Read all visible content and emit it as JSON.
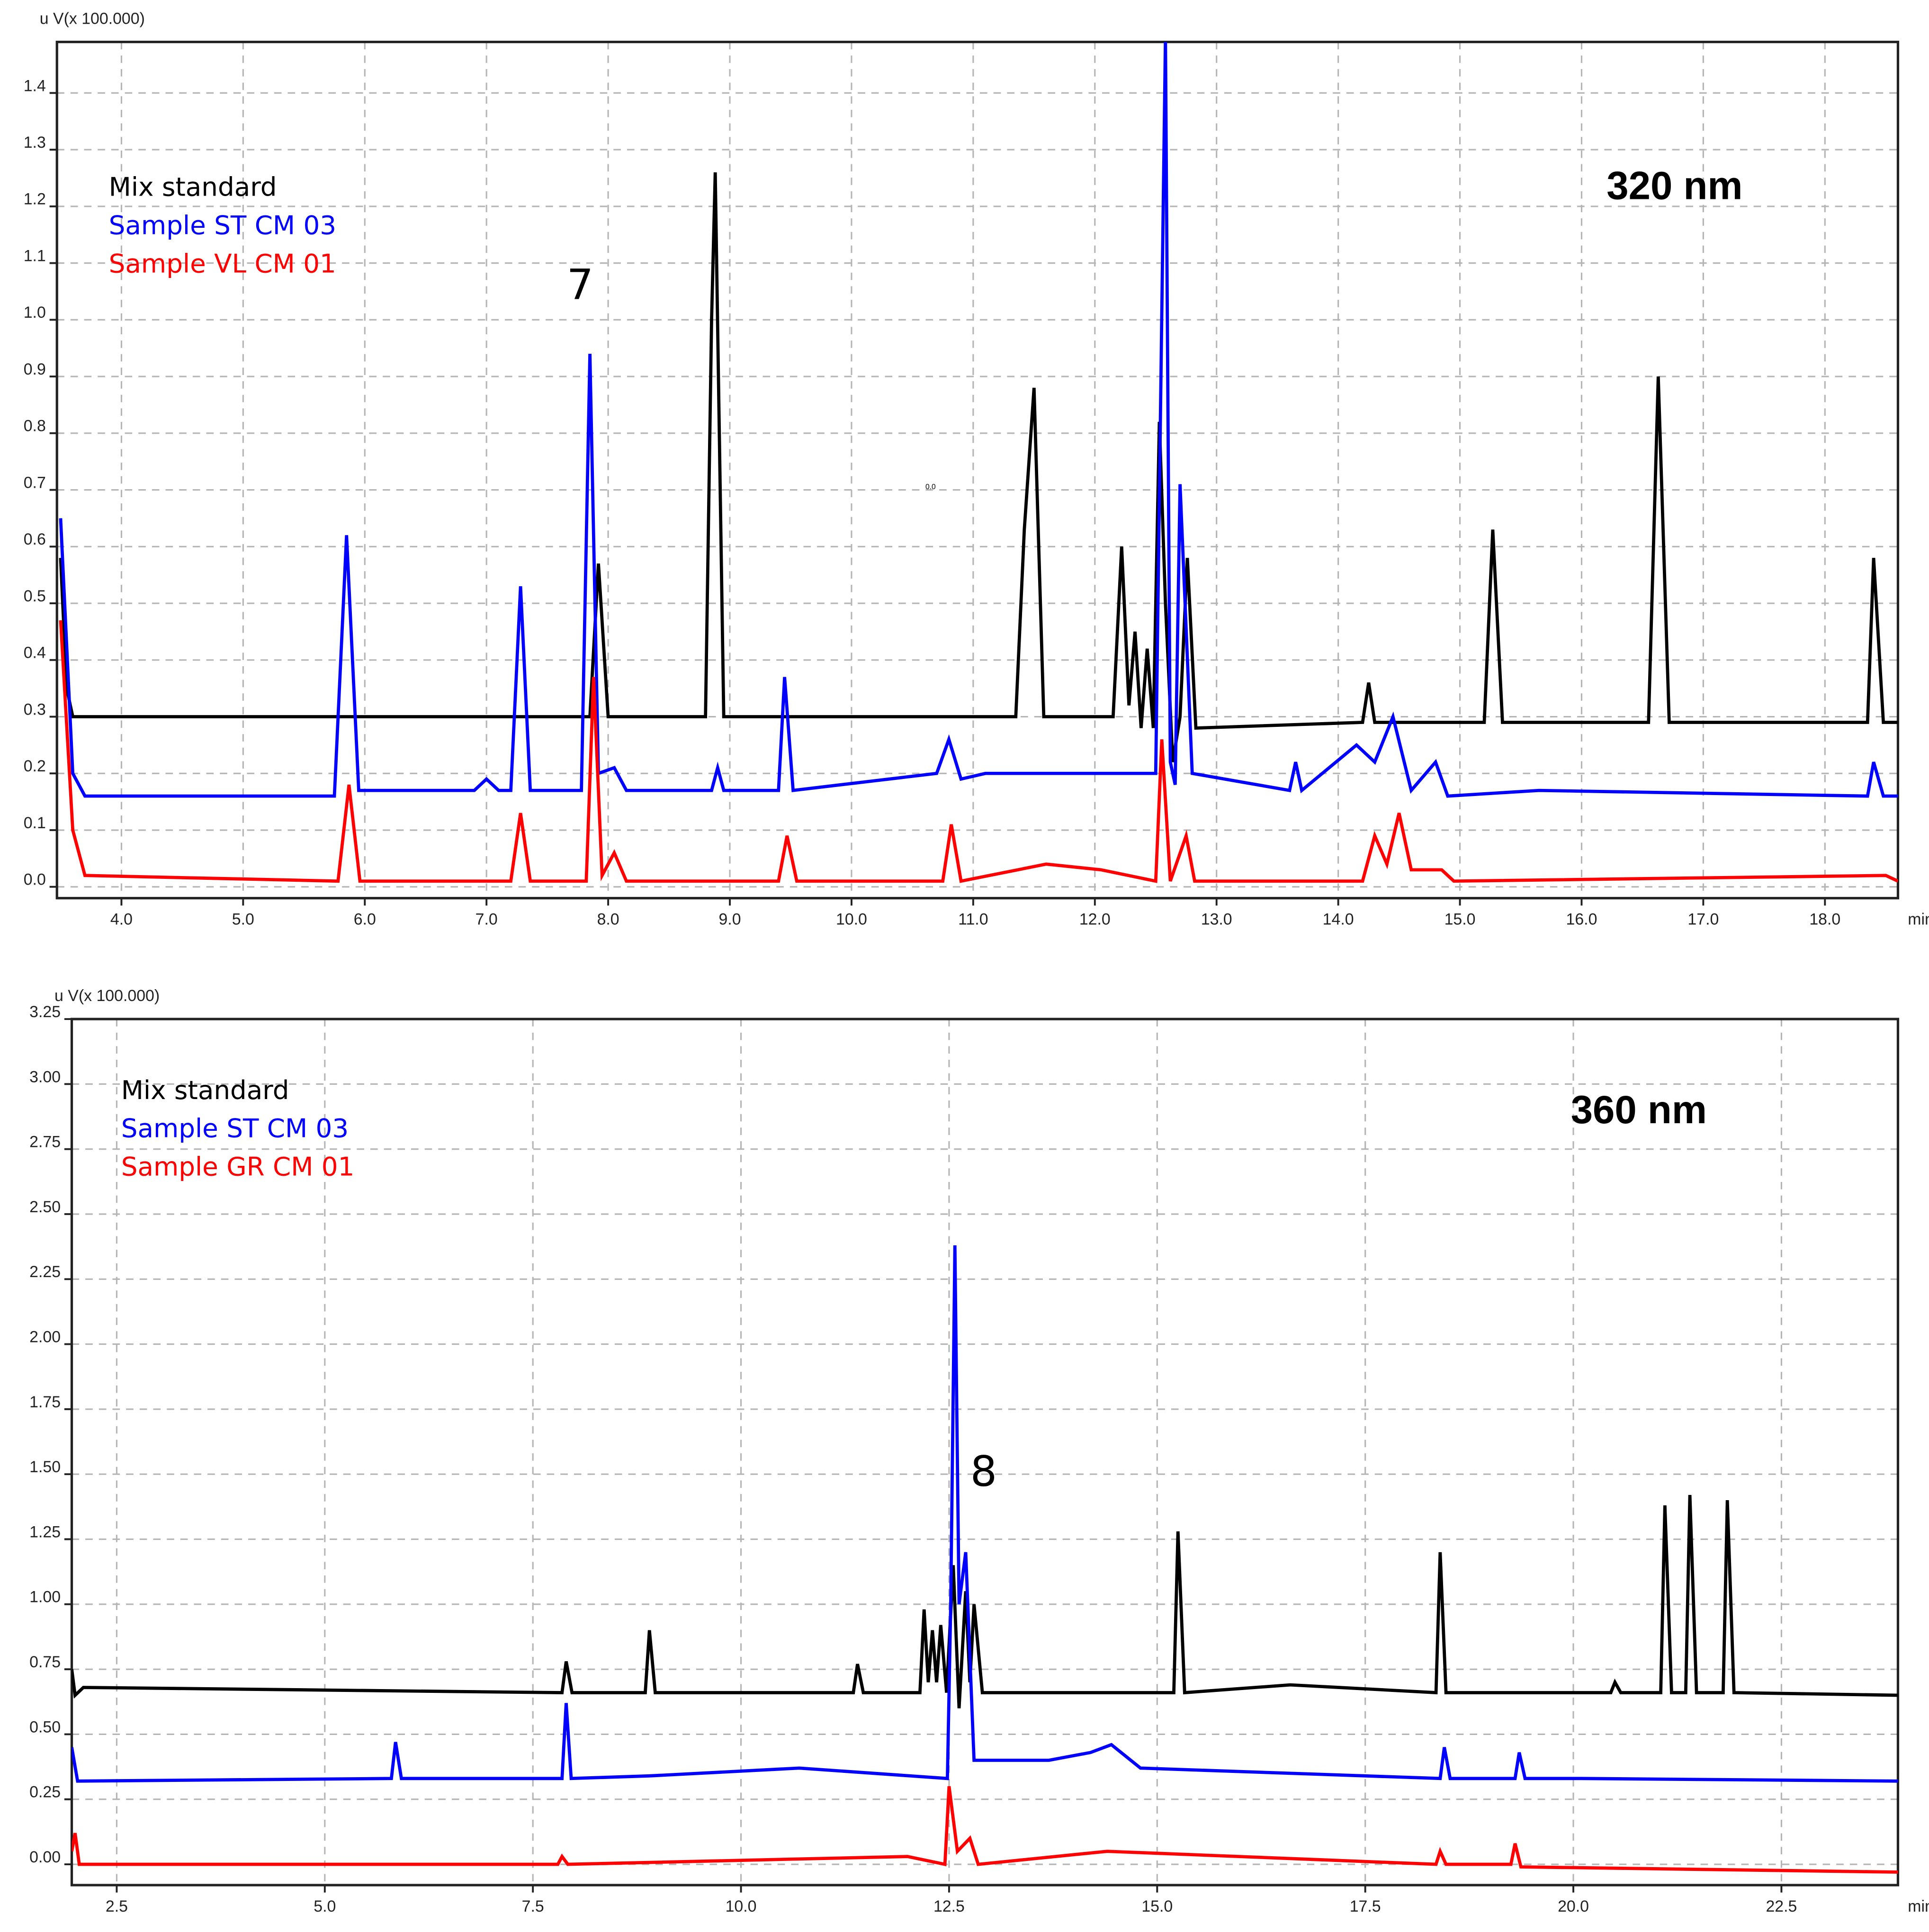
{
  "chart_data": [
    {
      "type": "line",
      "y_label": "u V(x 100.000)",
      "x_label": "min.",
      "xlim": [
        3.47,
        18.6
      ],
      "ylim": [
        -0.02,
        1.49
      ],
      "xticks": [
        {
          "value": 4,
          "label": "4.0"
        },
        {
          "value": 5,
          "label": "5.0"
        },
        {
          "value": 6,
          "label": "6.0"
        },
        {
          "value": 7,
          "label": "7.0"
        },
        {
          "value": 8,
          "label": "8.0"
        },
        {
          "value": 9,
          "label": "9.0"
        },
        {
          "value": 10,
          "label": "10.0"
        },
        {
          "value": 11,
          "label": "11.0"
        },
        {
          "value": 12,
          "label": "12.0"
        },
        {
          "value": 13,
          "label": "13.0"
        },
        {
          "value": 14,
          "label": "14.0"
        },
        {
          "value": 15,
          "label": "15.0"
        },
        {
          "value": 16,
          "label": "16.0"
        },
        {
          "value": 17,
          "label": "17.0"
        },
        {
          "value": 18,
          "label": "18.0"
        }
      ],
      "yticks": [
        {
          "value": 0,
          "label": "0.0"
        },
        0.1,
        0.2,
        0.3,
        0.4,
        0.5,
        0.6,
        0.7,
        0.8,
        0.9,
        {
          "value": 1,
          "label": "1.0"
        },
        1.1,
        1.2,
        1.3,
        1.4
      ],
      "grid": true,
      "legend": "upper left",
      "annotations": [
        "7",
        "320 nm",
        "0.0"
      ],
      "series": [
        {
          "name": "Mix standard",
          "color": "#000000",
          "x": [
            3.5,
            3.55,
            3.6,
            7.85,
            7.92,
            8.0,
            8.8,
            8.85,
            8.88,
            8.95,
            11.35,
            11.42,
            11.5,
            11.58,
            12.15,
            12.22,
            12.28,
            12.33,
            12.38,
            12.43,
            12.48,
            12.53,
            12.58,
            12.64,
            12.7,
            12.76,
            12.83,
            14.2,
            14.25,
            14.3,
            15.2,
            15.27,
            15.35,
            16.55,
            16.63,
            16.72,
            18.35,
            18.4,
            18.48,
            18.6
          ],
          "values": [
            0.58,
            0.35,
            0.3,
            0.3,
            0.57,
            0.3,
            0.3,
            1.0,
            1.26,
            0.3,
            0.3,
            0.63,
            0.88,
            0.3,
            0.3,
            0.6,
            0.32,
            0.45,
            0.28,
            0.42,
            0.28,
            0.82,
            0.5,
            0.22,
            0.3,
            0.58,
            0.28,
            0.29,
            0.36,
            0.29,
            0.29,
            0.63,
            0.29,
            0.29,
            0.9,
            0.29,
            0.29,
            0.58,
            0.29,
            0.29
          ]
        },
        {
          "name": "Sample ST CM 03",
          "color": "#0000ff",
          "x": [
            3.5,
            3.6,
            3.7,
            5.75,
            5.85,
            5.95,
            6.9,
            7.0,
            7.1,
            7.2,
            7.28,
            7.36,
            7.78,
            7.85,
            7.92,
            8.05,
            8.15,
            8.85,
            8.9,
            8.95,
            9.4,
            9.45,
            9.52,
            10.7,
            10.8,
            10.9,
            11.1,
            11.7,
            12.05,
            12.5,
            12.58,
            12.62,
            12.66,
            12.7,
            12.8,
            13.6,
            13.65,
            13.7,
            14.15,
            14.3,
            14.45,
            14.6,
            14.8,
            14.9,
            15.65,
            18.35,
            18.4,
            18.48,
            18.6
          ],
          "values": [
            0.65,
            0.2,
            0.16,
            0.16,
            0.62,
            0.17,
            0.17,
            0.19,
            0.17,
            0.17,
            0.53,
            0.17,
            0.17,
            0.94,
            0.2,
            0.21,
            0.17,
            0.17,
            0.21,
            0.17,
            0.17,
            0.37,
            0.17,
            0.2,
            0.26,
            0.19,
            0.2,
            0.2,
            0.2,
            0.2,
            1.5,
            0.22,
            0.18,
            0.71,
            0.2,
            0.17,
            0.22,
            0.17,
            0.25,
            0.22,
            0.3,
            0.17,
            0.22,
            0.16,
            0.17,
            0.16,
            0.22,
            0.16,
            0.16
          ]
        },
        {
          "name": "Sample VL CM 01",
          "color": "#ff0000",
          "x": [
            3.5,
            3.6,
            3.7,
            5.78,
            5.87,
            5.96,
            7.2,
            7.28,
            7.36,
            7.82,
            7.88,
            7.95,
            8.05,
            8.15,
            9.4,
            9.47,
            9.55,
            10.75,
            10.82,
            10.9,
            11.6,
            12.05,
            12.5,
            12.55,
            12.62,
            12.75,
            12.82,
            14.2,
            14.3,
            14.4,
            14.5,
            14.6,
            14.85,
            14.95,
            18.5,
            18.6
          ],
          "values": [
            0.47,
            0.1,
            0.02,
            0.01,
            0.18,
            0.01,
            0.01,
            0.13,
            0.01,
            0.01,
            0.37,
            0.02,
            0.06,
            0.01,
            0.01,
            0.09,
            0.01,
            0.01,
            0.11,
            0.01,
            0.04,
            0.03,
            0.01,
            0.26,
            0.01,
            0.09,
            0.01,
            0.01,
            0.09,
            0.04,
            0.13,
            0.03,
            0.03,
            0.01,
            0.02,
            0.01
          ]
        }
      ]
    },
    {
      "type": "line",
      "y_label": "u V(x 100.000)",
      "x_label": "min.",
      "xlim": [
        1.96,
        23.9
      ],
      "ylim": [
        -0.08,
        3.25
      ],
      "xticks": [
        2.5,
        {
          "value": 5,
          "label": "5.0"
        },
        7.5,
        {
          "value": 10,
          "label": "10.0"
        },
        12.5,
        {
          "value": 15,
          "label": "15.0"
        },
        17.5,
        {
          "value": 20,
          "label": "20.0"
        },
        22.5
      ],
      "yticks": [
        {
          "value": 0,
          "label": "0.00"
        },
        0.25,
        {
          "value": 0.5,
          "label": "0.50"
        },
        0.75,
        {
          "value": 1,
          "label": "1.00"
        },
        1.25,
        {
          "value": 1.5,
          "label": "1.50"
        },
        1.75,
        {
          "value": 2,
          "label": "2.00"
        },
        2.25,
        {
          "value": 2.5,
          "label": "2.50"
        },
        2.75,
        {
          "value": 3,
          "label": "3.00"
        },
        3.25
      ],
      "grid": true,
      "legend": "upper left",
      "annotations": [
        "8",
        "360 nm"
      ],
      "series": [
        {
          "name": "Mix standard",
          "color": "#000000",
          "x": [
            1.96,
            2.0,
            2.1,
            7.85,
            7.9,
            7.97,
            8.85,
            8.9,
            8.97,
            11.35,
            11.4,
            11.47,
            12.15,
            12.2,
            12.25,
            12.3,
            12.35,
            12.4,
            12.47,
            12.55,
            12.62,
            12.7,
            12.75,
            12.8,
            12.9,
            15.2,
            15.25,
            15.33,
            16.6,
            18.35,
            18.4,
            18.47,
            20.45,
            20.5,
            20.57,
            21.05,
            21.1,
            21.18,
            21.35,
            21.4,
            21.48,
            21.8,
            21.85,
            21.93,
            23.9
          ],
          "values": [
            0.75,
            0.65,
            0.68,
            0.66,
            0.78,
            0.66,
            0.66,
            0.9,
            0.66,
            0.66,
            0.77,
            0.66,
            0.66,
            0.98,
            0.7,
            0.9,
            0.7,
            0.92,
            0.66,
            1.15,
            0.6,
            1.05,
            0.7,
            1.0,
            0.66,
            0.66,
            1.28,
            0.66,
            0.69,
            0.66,
            1.2,
            0.66,
            0.66,
            0.7,
            0.66,
            0.66,
            1.38,
            0.66,
            0.66,
            1.42,
            0.66,
            0.66,
            1.4,
            0.66,
            0.65
          ]
        },
        {
          "name": "Sample ST CM 03",
          "color": "#0000ff",
          "x": [
            1.96,
            2.03,
            5.8,
            5.85,
            5.92,
            7.85,
            7.9,
            7.96,
            8.9,
            10.7,
            12.48,
            12.52,
            12.57,
            12.62,
            12.7,
            12.8,
            13.7,
            14.2,
            14.45,
            14.8,
            18.4,
            18.45,
            18.52,
            19.3,
            19.35,
            19.42,
            20.1,
            23.9
          ],
          "values": [
            0.45,
            0.32,
            0.33,
            0.47,
            0.33,
            0.33,
            0.62,
            0.33,
            0.34,
            0.37,
            0.33,
            1.0,
            2.38,
            1.0,
            1.2,
            0.4,
            0.4,
            0.43,
            0.46,
            0.37,
            0.33,
            0.45,
            0.33,
            0.33,
            0.43,
            0.33,
            0.33,
            0.32
          ]
        },
        {
          "name": "Sample GR CM 01",
          "color": "#ff0000",
          "x": [
            1.96,
            2.0,
            2.05,
            7.8,
            7.85,
            7.92,
            12.0,
            12.45,
            12.5,
            12.6,
            12.75,
            12.85,
            14.4,
            18.35,
            18.4,
            18.47,
            19.25,
            19.3,
            19.37,
            23.9
          ],
          "values": [
            0.05,
            0.12,
            0.0,
            0.0,
            0.03,
            0.0,
            0.03,
            0.0,
            0.3,
            0.05,
            0.1,
            0.0,
            0.05,
            0.0,
            0.05,
            0.0,
            0.0,
            0.08,
            -0.01,
            -0.03
          ]
        }
      ]
    }
  ]
}
